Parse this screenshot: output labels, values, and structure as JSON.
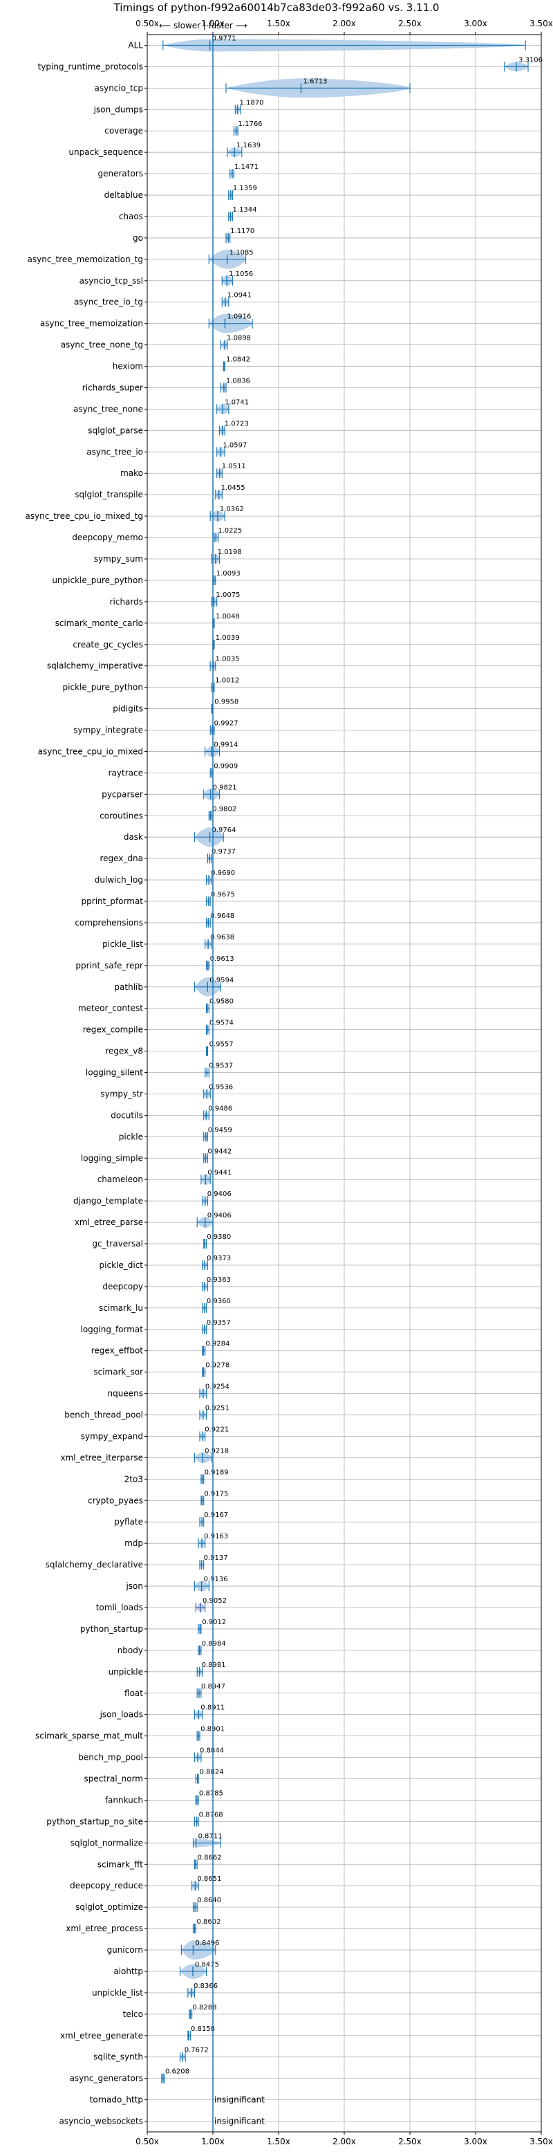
{
  "chart_data": {
    "type": "violin",
    "title": "Timings of python-f992a60014b7ca83de03-f992a60 vs. 3.11.0",
    "direction_slower": "⟵ slower",
    "direction_faster": "faster ⟶",
    "direction_separator": "|",
    "xlim": [
      0.5,
      3.5
    ],
    "x_ticks": [
      0.5,
      1.0,
      1.5,
      2.0,
      2.5,
      3.0,
      3.5
    ],
    "x_tick_labels": [
      "0.50x",
      "1.00x",
      "1.50x",
      "2.00x",
      "2.50x",
      "3.00x",
      "3.50x"
    ],
    "reference_line": 1.0,
    "grid": true,
    "colors": {
      "violin": "#1f77b4",
      "violin_fill": "#aecbe8",
      "insignificant_fill": "#d9b6d9"
    },
    "benchmarks": [
      {
        "name": "ALL",
        "value": 0.9771,
        "label": "0.9771",
        "min": 0.62,
        "max": 3.38,
        "width": 0.18
      },
      {
        "name": "typing_runtime_protocols",
        "value": 3.3106,
        "label": "3.3106",
        "min": 3.22,
        "max": 3.4,
        "width": 0.14
      },
      {
        "name": "asyncio_tcp",
        "value": 1.6713,
        "label": "1.6713",
        "min": 1.1,
        "max": 2.5,
        "width": 0.38
      },
      {
        "name": "json_dumps",
        "value": 1.187,
        "label": "1.1870",
        "min": 1.17,
        "max": 1.21,
        "width": 0.12
      },
      {
        "name": "coverage",
        "value": 1.1766,
        "label": "1.1766",
        "min": 1.16,
        "max": 1.19,
        "width": 0.12
      },
      {
        "name": "unpack_sequence",
        "value": 1.1639,
        "label": "1.1639",
        "min": 1.11,
        "max": 1.22,
        "width": 0.14
      },
      {
        "name": "generators",
        "value": 1.1471,
        "label": "1.1471",
        "min": 1.13,
        "max": 1.16,
        "width": 0.12
      },
      {
        "name": "deltablue",
        "value": 1.1359,
        "label": "1.1359",
        "min": 1.12,
        "max": 1.15,
        "width": 0.12
      },
      {
        "name": "chaos",
        "value": 1.1344,
        "label": "1.1344",
        "min": 1.12,
        "max": 1.15,
        "width": 0.12
      },
      {
        "name": "go",
        "value": 1.117,
        "label": "1.1170",
        "min": 1.1,
        "max": 1.13,
        "width": 0.12
      },
      {
        "name": "async_tree_memoization_tg",
        "value": 1.1085,
        "label": "1.1085",
        "min": 0.97,
        "max": 1.25,
        "width": 0.3
      },
      {
        "name": "asyncio_tcp_ssl",
        "value": 1.1056,
        "label": "1.1056",
        "min": 1.07,
        "max": 1.15,
        "width": 0.16
      },
      {
        "name": "async_tree_io_tg",
        "value": 1.0941,
        "label": "1.0941",
        "min": 1.07,
        "max": 1.12,
        "width": 0.12
      },
      {
        "name": "async_tree_memoization",
        "value": 1.0916,
        "label": "1.0916",
        "min": 0.97,
        "max": 1.3,
        "width": 0.3
      },
      {
        "name": "async_tree_none_tg",
        "value": 1.0898,
        "label": "1.0898",
        "min": 1.06,
        "max": 1.11,
        "width": 0.12
      },
      {
        "name": "hexiom",
        "value": 1.0842,
        "label": "1.0842",
        "min": 1.08,
        "max": 1.09,
        "width": 0.08
      },
      {
        "name": "richards_super",
        "value": 1.0836,
        "label": "1.0836",
        "min": 1.06,
        "max": 1.1,
        "width": 0.12
      },
      {
        "name": "async_tree_none",
        "value": 1.0741,
        "label": "1.0741",
        "min": 1.03,
        "max": 1.12,
        "width": 0.16
      },
      {
        "name": "sqlglot_parse",
        "value": 1.0723,
        "label": "1.0723",
        "min": 1.05,
        "max": 1.09,
        "width": 0.14
      },
      {
        "name": "async_tree_io",
        "value": 1.0597,
        "label": "1.0597",
        "min": 1.03,
        "max": 1.09,
        "width": 0.14
      },
      {
        "name": "mako",
        "value": 1.0511,
        "label": "1.0511",
        "min": 1.03,
        "max": 1.07,
        "width": 0.12
      },
      {
        "name": "sqlglot_transpile",
        "value": 1.0455,
        "label": "1.0455",
        "min": 1.02,
        "max": 1.07,
        "width": 0.14
      },
      {
        "name": "async_tree_cpu_io_mixed_tg",
        "value": 1.0362,
        "label": "1.0362",
        "min": 0.98,
        "max": 1.09,
        "width": 0.16
      },
      {
        "name": "deepcopy_memo",
        "value": 1.0225,
        "label": "1.0225",
        "min": 1.01,
        "max": 1.04,
        "width": 0.12
      },
      {
        "name": "sympy_sum",
        "value": 1.0198,
        "label": "1.0198",
        "min": 0.99,
        "max": 1.05,
        "width": 0.14
      },
      {
        "name": "unpickle_pure_python",
        "value": 1.0093,
        "label": "1.0093",
        "min": 1.0,
        "max": 1.02,
        "width": 0.1
      },
      {
        "name": "richards",
        "value": 1.0075,
        "label": "1.0075",
        "min": 0.99,
        "max": 1.03,
        "width": 0.12
      },
      {
        "name": "scimark_monte_carlo",
        "value": 1.0048,
        "label": "1.0048",
        "min": 1.0,
        "max": 1.01,
        "width": 0.08
      },
      {
        "name": "create_gc_cycles",
        "value": 1.0039,
        "label": "1.0039",
        "min": 1.0,
        "max": 1.01,
        "width": 0.08
      },
      {
        "name": "sqlalchemy_imperative",
        "value": 1.0035,
        "label": "1.0035",
        "min": 0.98,
        "max": 1.02,
        "width": 0.12
      },
      {
        "name": "pickle_pure_python",
        "value": 1.0012,
        "label": "1.0012",
        "min": 0.99,
        "max": 1.01,
        "width": 0.1
      },
      {
        "name": "pidigits",
        "value": 0.9958,
        "label": "0.9958",
        "min": 0.99,
        "max": 1.0,
        "width": 0.08
      },
      {
        "name": "sympy_integrate",
        "value": 0.9927,
        "label": "0.9927",
        "min": 0.98,
        "max": 1.01,
        "width": 0.1
      },
      {
        "name": "async_tree_cpu_io_mixed",
        "value": 0.9914,
        "label": "0.9914",
        "min": 0.94,
        "max": 1.05,
        "width": 0.16
      },
      {
        "name": "raytrace",
        "value": 0.9909,
        "label": "0.9909",
        "min": 0.98,
        "max": 1.0,
        "width": 0.08
      },
      {
        "name": "pycparser",
        "value": 0.9821,
        "label": "0.9821",
        "min": 0.93,
        "max": 1.05,
        "width": 0.18
      },
      {
        "name": "coroutines",
        "value": 0.9802,
        "label": "0.9802",
        "min": 0.97,
        "max": 0.99,
        "width": 0.08
      },
      {
        "name": "dask",
        "value": 0.9764,
        "label": "0.9764",
        "min": 0.86,
        "max": 1.08,
        "width": 0.3
      },
      {
        "name": "regex_dna",
        "value": 0.9737,
        "label": "0.9737",
        "min": 0.96,
        "max": 0.99,
        "width": 0.08
      },
      {
        "name": "dulwich_log",
        "value": 0.969,
        "label": "0.9690",
        "min": 0.95,
        "max": 0.99,
        "width": 0.12
      },
      {
        "name": "pprint_pformat",
        "value": 0.9675,
        "label": "0.9675",
        "min": 0.95,
        "max": 0.98,
        "width": 0.1
      },
      {
        "name": "comprehensions",
        "value": 0.9648,
        "label": "0.9648",
        "min": 0.95,
        "max": 0.98,
        "width": 0.1
      },
      {
        "name": "pickle_list",
        "value": 0.9638,
        "label": "0.9638",
        "min": 0.94,
        "max": 0.99,
        "width": 0.12
      },
      {
        "name": "pprint_safe_repr",
        "value": 0.9613,
        "label": "0.9613",
        "min": 0.95,
        "max": 0.97,
        "width": 0.1
      },
      {
        "name": "pathlib",
        "value": 0.9594,
        "label": "0.9594",
        "min": 0.86,
        "max": 1.06,
        "width": 0.3
      },
      {
        "name": "meteor_contest",
        "value": 0.958,
        "label": "0.9580",
        "min": 0.95,
        "max": 0.97,
        "width": 0.08
      },
      {
        "name": "regex_compile",
        "value": 0.9574,
        "label": "0.9574",
        "min": 0.95,
        "max": 0.97,
        "width": 0.08
      },
      {
        "name": "regex_v8",
        "value": 0.9557,
        "label": "0.9557",
        "min": 0.95,
        "max": 0.96,
        "width": 0.08
      },
      {
        "name": "logging_silent",
        "value": 0.9537,
        "label": "0.9537",
        "min": 0.94,
        "max": 0.97,
        "width": 0.08
      },
      {
        "name": "sympy_str",
        "value": 0.9536,
        "label": "0.9536",
        "min": 0.93,
        "max": 0.98,
        "width": 0.12
      },
      {
        "name": "docutils",
        "value": 0.9486,
        "label": "0.9486",
        "min": 0.93,
        "max": 0.97,
        "width": 0.1
      },
      {
        "name": "pickle",
        "value": 0.9459,
        "label": "0.9459",
        "min": 0.93,
        "max": 0.96,
        "width": 0.1
      },
      {
        "name": "logging_simple",
        "value": 0.9442,
        "label": "0.9442",
        "min": 0.93,
        "max": 0.96,
        "width": 0.1
      },
      {
        "name": "chameleon",
        "value": 0.9441,
        "label": "0.9441",
        "min": 0.91,
        "max": 0.98,
        "width": 0.16
      },
      {
        "name": "django_template",
        "value": 0.9406,
        "label": "0.9406",
        "min": 0.92,
        "max": 0.96,
        "width": 0.1
      },
      {
        "name": "xml_etree_parse",
        "value": 0.9406,
        "label": "0.9406",
        "min": 0.88,
        "max": 1.0,
        "width": 0.16
      },
      {
        "name": "gc_traversal",
        "value": 0.938,
        "label": "0.9380",
        "min": 0.93,
        "max": 0.95,
        "width": 0.08
      },
      {
        "name": "pickle_dict",
        "value": 0.9373,
        "label": "0.9373",
        "min": 0.92,
        "max": 0.96,
        "width": 0.1
      },
      {
        "name": "deepcopy",
        "value": 0.9363,
        "label": "0.9363",
        "min": 0.92,
        "max": 0.96,
        "width": 0.1
      },
      {
        "name": "scimark_lu",
        "value": 0.936,
        "label": "0.9360",
        "min": 0.92,
        "max": 0.95,
        "width": 0.08
      },
      {
        "name": "logging_format",
        "value": 0.9357,
        "label": "0.9357",
        "min": 0.92,
        "max": 0.95,
        "width": 0.1
      },
      {
        "name": "regex_effbot",
        "value": 0.9284,
        "label": "0.9284",
        "min": 0.92,
        "max": 0.94,
        "width": 0.08
      },
      {
        "name": "scimark_sor",
        "value": 0.9278,
        "label": "0.9278",
        "min": 0.92,
        "max": 0.94,
        "width": 0.08
      },
      {
        "name": "nqueens",
        "value": 0.9254,
        "label": "0.9254",
        "min": 0.9,
        "max": 0.95,
        "width": 0.12
      },
      {
        "name": "bench_thread_pool",
        "value": 0.9251,
        "label": "0.9251",
        "min": 0.9,
        "max": 0.95,
        "width": 0.1
      },
      {
        "name": "sympy_expand",
        "value": 0.9221,
        "label": "0.9221",
        "min": 0.9,
        "max": 0.94,
        "width": 0.1
      },
      {
        "name": "xml_etree_iterparse",
        "value": 0.9218,
        "label": "0.9218",
        "min": 0.86,
        "max": 0.99,
        "width": 0.16
      },
      {
        "name": "2to3",
        "value": 0.9189,
        "label": "0.9189",
        "min": 0.91,
        "max": 0.93,
        "width": 0.08
      },
      {
        "name": "crypto_pyaes",
        "value": 0.9175,
        "label": "0.9175",
        "min": 0.91,
        "max": 0.93,
        "width": 0.08
      },
      {
        "name": "pyflate",
        "value": 0.9167,
        "label": "0.9167",
        "min": 0.9,
        "max": 0.93,
        "width": 0.08
      },
      {
        "name": "mdp",
        "value": 0.9163,
        "label": "0.9163",
        "min": 0.89,
        "max": 0.94,
        "width": 0.12
      },
      {
        "name": "sqlalchemy_declarative",
        "value": 0.9137,
        "label": "0.9137",
        "min": 0.9,
        "max": 0.93,
        "width": 0.1
      },
      {
        "name": "json",
        "value": 0.9136,
        "label": "0.9136",
        "min": 0.86,
        "max": 0.97,
        "width": 0.16
      },
      {
        "name": "tomli_loads",
        "value": 0.9052,
        "label": "0.9052",
        "min": 0.87,
        "max": 0.94,
        "width": 0.12,
        "insignificant": true
      },
      {
        "name": "python_startup",
        "value": 0.9012,
        "label": "0.9012",
        "min": 0.89,
        "max": 0.91,
        "width": 0.08
      },
      {
        "name": "nbody",
        "value": 0.8984,
        "label": "0.8984",
        "min": 0.89,
        "max": 0.91,
        "width": 0.08
      },
      {
        "name": "unpickle",
        "value": 0.8981,
        "label": "0.8981",
        "min": 0.88,
        "max": 0.92,
        "width": 0.1
      },
      {
        "name": "float",
        "value": 0.8947,
        "label": "0.8947",
        "min": 0.88,
        "max": 0.91,
        "width": 0.08
      },
      {
        "name": "json_loads",
        "value": 0.8911,
        "label": "0.8911",
        "min": 0.86,
        "max": 0.92,
        "width": 0.12
      },
      {
        "name": "scimark_sparse_mat_mult",
        "value": 0.8901,
        "label": "0.8901",
        "min": 0.88,
        "max": 0.9,
        "width": 0.06
      },
      {
        "name": "bench_mp_pool",
        "value": 0.8844,
        "label": "0.8844",
        "min": 0.86,
        "max": 0.91,
        "width": 0.1
      },
      {
        "name": "spectral_norm",
        "value": 0.8824,
        "label": "0.8824",
        "min": 0.87,
        "max": 0.89,
        "width": 0.06
      },
      {
        "name": "fannkuch",
        "value": 0.8785,
        "label": "0.8785",
        "min": 0.87,
        "max": 0.89,
        "width": 0.06
      },
      {
        "name": "python_startup_no_site",
        "value": 0.8768,
        "label": "0.8768",
        "min": 0.86,
        "max": 0.89,
        "width": 0.08
      },
      {
        "name": "sqlglot_normalize",
        "value": 0.8711,
        "label": "0.8711",
        "min": 0.85,
        "max": 1.06,
        "width": 0.12
      },
      {
        "name": "scimark_fft",
        "value": 0.8662,
        "label": "0.8662",
        "min": 0.86,
        "max": 0.88,
        "width": 0.06
      },
      {
        "name": "deepcopy_reduce",
        "value": 0.8651,
        "label": "0.8651",
        "min": 0.84,
        "max": 0.89,
        "width": 0.12
      },
      {
        "name": "sqlglot_optimize",
        "value": 0.864,
        "label": "0.8640",
        "min": 0.85,
        "max": 0.88,
        "width": 0.08
      },
      {
        "name": "xml_etree_process",
        "value": 0.8602,
        "label": "0.8602",
        "min": 0.85,
        "max": 0.87,
        "width": 0.06
      },
      {
        "name": "gunicorn",
        "value": 0.8496,
        "label": "0.8496",
        "min": 0.76,
        "max": 1.02,
        "width": 0.3
      },
      {
        "name": "aiohttp",
        "value": 0.8475,
        "label": "0.8475",
        "min": 0.75,
        "max": 0.95,
        "width": 0.22
      },
      {
        "name": "unpickle_list",
        "value": 0.8366,
        "label": "0.8366",
        "min": 0.81,
        "max": 0.86,
        "width": 0.12
      },
      {
        "name": "telco",
        "value": 0.8288,
        "label": "0.8288",
        "min": 0.82,
        "max": 0.84,
        "width": 0.06
      },
      {
        "name": "xml_etree_generate",
        "value": 0.8158,
        "label": "0.8158",
        "min": 0.81,
        "max": 0.83,
        "width": 0.06
      },
      {
        "name": "sqlite_synth",
        "value": 0.7672,
        "label": "0.7672",
        "min": 0.75,
        "max": 0.79,
        "width": 0.08
      },
      {
        "name": "async_generators",
        "value": 0.6208,
        "label": "0.6208",
        "min": 0.61,
        "max": 0.63,
        "width": 0.08
      },
      {
        "name": "tornado_http",
        "value": null,
        "label": "insignificant",
        "note": "insignificant"
      },
      {
        "name": "asyncio_websockets",
        "value": null,
        "label": "insignificant",
        "note": "insignificant"
      }
    ]
  }
}
